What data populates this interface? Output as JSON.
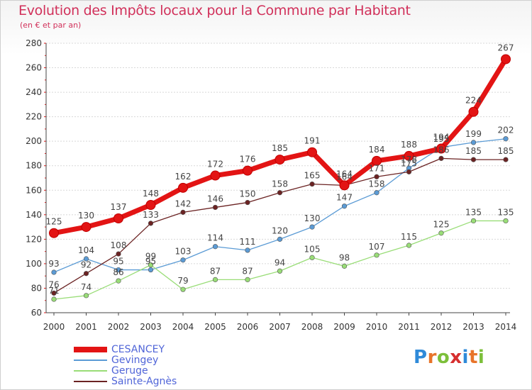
{
  "title": "Evolution des Impôts locaux pour la Commune par Habitant",
  "subtitle": "(en € et par an)",
  "logo": {
    "letters": [
      "P",
      "r",
      "o",
      "x",
      "i",
      "t",
      "i"
    ],
    "colors": [
      "#2f8ad9",
      "#e8742a",
      "#7cbf3a",
      "#d62f2f",
      "#2f8ad9",
      "#e8742a",
      "#7cbf3a"
    ]
  },
  "chart_data": {
    "type": "line",
    "categories": [
      "2000",
      "2001",
      "2002",
      "2003",
      "2004",
      "2005",
      "2006",
      "2007",
      "2008",
      "2009",
      "2010",
      "2011",
      "2012",
      "2013",
      "2014"
    ],
    "ylim": [
      60,
      280
    ],
    "yticks": [
      "60",
      "80",
      "100",
      "120",
      "140",
      "160",
      "180",
      "200",
      "220",
      "240",
      "260",
      "280"
    ],
    "grid": "horizontal",
    "legend_position": "bottom-left",
    "series": [
      {
        "name": "CESANCEY",
        "color": "#e31414",
        "values": [
          125,
          130,
          137,
          148,
          162,
          172,
          176,
          185,
          191,
          164,
          184,
          188,
          194,
          224,
          267
        ],
        "labels": [
          "125",
          "130",
          "137",
          "148",
          "162",
          "172",
          "176",
          "185",
          "191",
          "164",
          "184",
          "188",
          "194",
          "224",
          "267"
        ]
      },
      {
        "name": "Gevingey",
        "color": "#5b9bd5",
        "values": [
          93,
          104,
          95,
          95,
          103,
          114,
          111,
          120,
          130,
          147,
          158,
          178,
          195,
          199,
          202
        ],
        "labels": [
          "93",
          "104",
          "95",
          "95",
          "103",
          "114",
          "111",
          "120",
          "130",
          "147",
          "158",
          "178",
          "195",
          "199",
          "202"
        ]
      },
      {
        "name": "Geruge",
        "color": "#99dd77",
        "values": [
          71,
          74,
          86,
          99,
          79,
          87,
          87,
          94,
          105,
          98,
          107,
          115,
          125,
          135,
          135
        ],
        "labels": [
          "71",
          "74",
          "86",
          "99",
          "79",
          "87",
          "87",
          "94",
          "105",
          "98",
          "107",
          "115",
          "125",
          "135",
          "135"
        ]
      },
      {
        "name": "Sainte-Agnès",
        "color": "#6b2323",
        "values": [
          76,
          92,
          108,
          133,
          142,
          146,
          150,
          158,
          165,
          164,
          171,
          175,
          186,
          185,
          185
        ],
        "labels": [
          "76",
          "92",
          "108",
          "133",
          "142",
          "146",
          "150",
          "158",
          "165",
          "164",
          "171",
          "175",
          "186",
          "185",
          "185"
        ]
      }
    ]
  }
}
